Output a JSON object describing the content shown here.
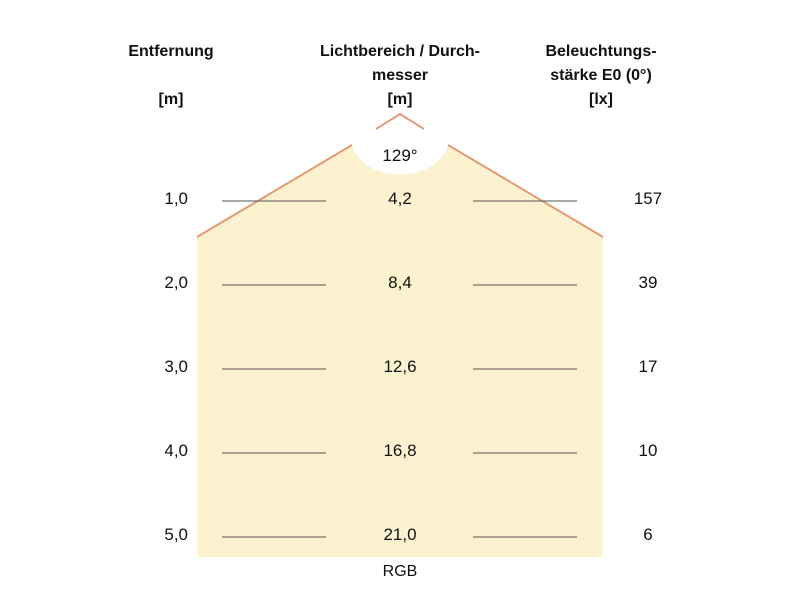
{
  "headers": {
    "distance": {
      "lines": [
        "Entfernung"
      ],
      "unit": "[m]"
    },
    "diameter": {
      "lines": [
        "Lichtbereich / Durch-",
        "messer"
      ],
      "unit": "[m]"
    },
    "illuminance": {
      "lines": [
        "Beleuchtungs-",
        "stärke E0 (0°)"
      ],
      "unit": "[lx]"
    }
  },
  "beam_angle": "129°",
  "rows": [
    {
      "distance": "1,0",
      "diameter": "4,2",
      "illuminance": "157"
    },
    {
      "distance": "2,0",
      "diameter": "8,4",
      "illuminance": "39"
    },
    {
      "distance": "3,0",
      "diameter": "12,6",
      "illuminance": "17"
    },
    {
      "distance": "4,0",
      "diameter": "16,8",
      "illuminance": "10"
    },
    {
      "distance": "5,0",
      "diameter": "21,0",
      "illuminance": "6"
    }
  ],
  "footer": "RGB",
  "colors": {
    "beam_fill": "#fdf2d0",
    "beam_edge": "#e59a73",
    "guide_line": "#555555"
  }
}
